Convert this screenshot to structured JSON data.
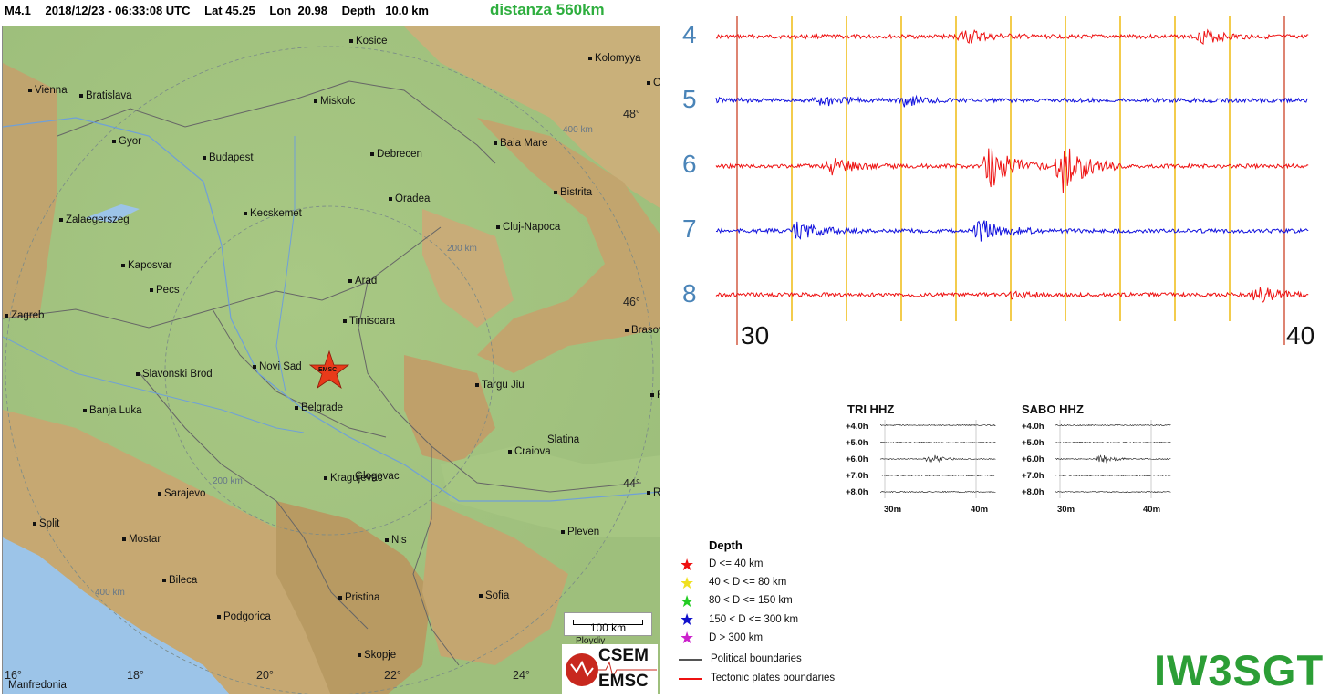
{
  "header": {
    "magnitude": "M4.1",
    "datetime": "2018/12/23 - 06:33:08 UTC",
    "lat": "Lat 45.25",
    "lon": "Lon  20.98",
    "depth": "Depth   10.0 km",
    "distanza": "distanza 560km"
  },
  "map": {
    "cities": [
      "Kosice",
      "Kolomyya",
      "Vienna",
      "Bratislava",
      "Miskolc",
      "Gyor",
      "Budapest",
      "Debrecen",
      "Baia Mare",
      "Bistrita",
      "Oradea",
      "Kecskemet",
      "Zalaegerszeg",
      "Cluj-Napoca",
      "Kaposvar",
      "Pecs",
      "Arad",
      "Zagreb",
      "Timisoara",
      "Novi Sad",
      "Brasov",
      "Slavonski Brod",
      "Targu Jiu",
      "Banja Luka",
      "Belgrade",
      "Slatina",
      "Craiova",
      "Kragujevac",
      "Glogovac",
      "Sarajevo",
      "Split",
      "Mostar",
      "Nis",
      "Pleven",
      "Bileca",
      "Pristina",
      "Sofia",
      "Podgorica",
      "Skopje",
      "Manfredonia",
      "Ploydiy",
      "Ch",
      "R",
      "R"
    ],
    "ring_labels": [
      "400 km",
      "200 km",
      "200 km",
      "400 km"
    ],
    "lat_labels": [
      "48°",
      "46°",
      "44°"
    ],
    "lon_labels": [
      "16°",
      "18°",
      "20°",
      "22°",
      "24°"
    ],
    "event_label": "EMSC",
    "scalebar": "100 km",
    "logo_top": "CSEM",
    "logo_bottom": "EMSC"
  },
  "seismogram": {
    "trace_numbers": [
      "4",
      "5",
      "6",
      "7",
      "8"
    ],
    "trace_colors": [
      "#ee1111",
      "#1010dd",
      "#ee1111",
      "#1010dd",
      "#ee1111"
    ],
    "start_label": "30",
    "end_label": "40",
    "marker_color_red": "#c83214",
    "marker_color_yellow": "#f0c020"
  },
  "mini_plots": [
    {
      "title": "TRI HHZ",
      "hours": [
        "+4.0h",
        "+5.0h",
        "+6.0h",
        "+7.0h",
        "+8.0h"
      ],
      "axis": [
        "30m",
        "40m"
      ]
    },
    {
      "title": "SABO HHZ",
      "hours": [
        "+4.0h",
        "+5.0h",
        "+6.0h",
        "+7.0h",
        "+8.0h"
      ],
      "axis": [
        "30m",
        "40m"
      ]
    }
  ],
  "legend": {
    "title": "Depth",
    "items": [
      {
        "label": "D <= 40 km",
        "color": "#ee1111",
        "icon": "star-icon"
      },
      {
        "label": "40 < D <= 80 km",
        "color": "#f0e020",
        "icon": "star-icon"
      },
      {
        "label": "80 < D <= 150 km",
        "color": "#22cc22",
        "icon": "star-icon"
      },
      {
        "label": "150 < D <= 300 km",
        "color": "#1111cc",
        "icon": "star-icon"
      },
      {
        "label": "D > 300 km",
        "color": "#cc22cc",
        "icon": "star-icon"
      }
    ],
    "boundaries": [
      {
        "label": "Political boundaries",
        "color": "#555555"
      },
      {
        "label": "Tectonic plates boundaries",
        "color": "#ee1111"
      }
    ]
  },
  "callsign": "IW3SGT"
}
